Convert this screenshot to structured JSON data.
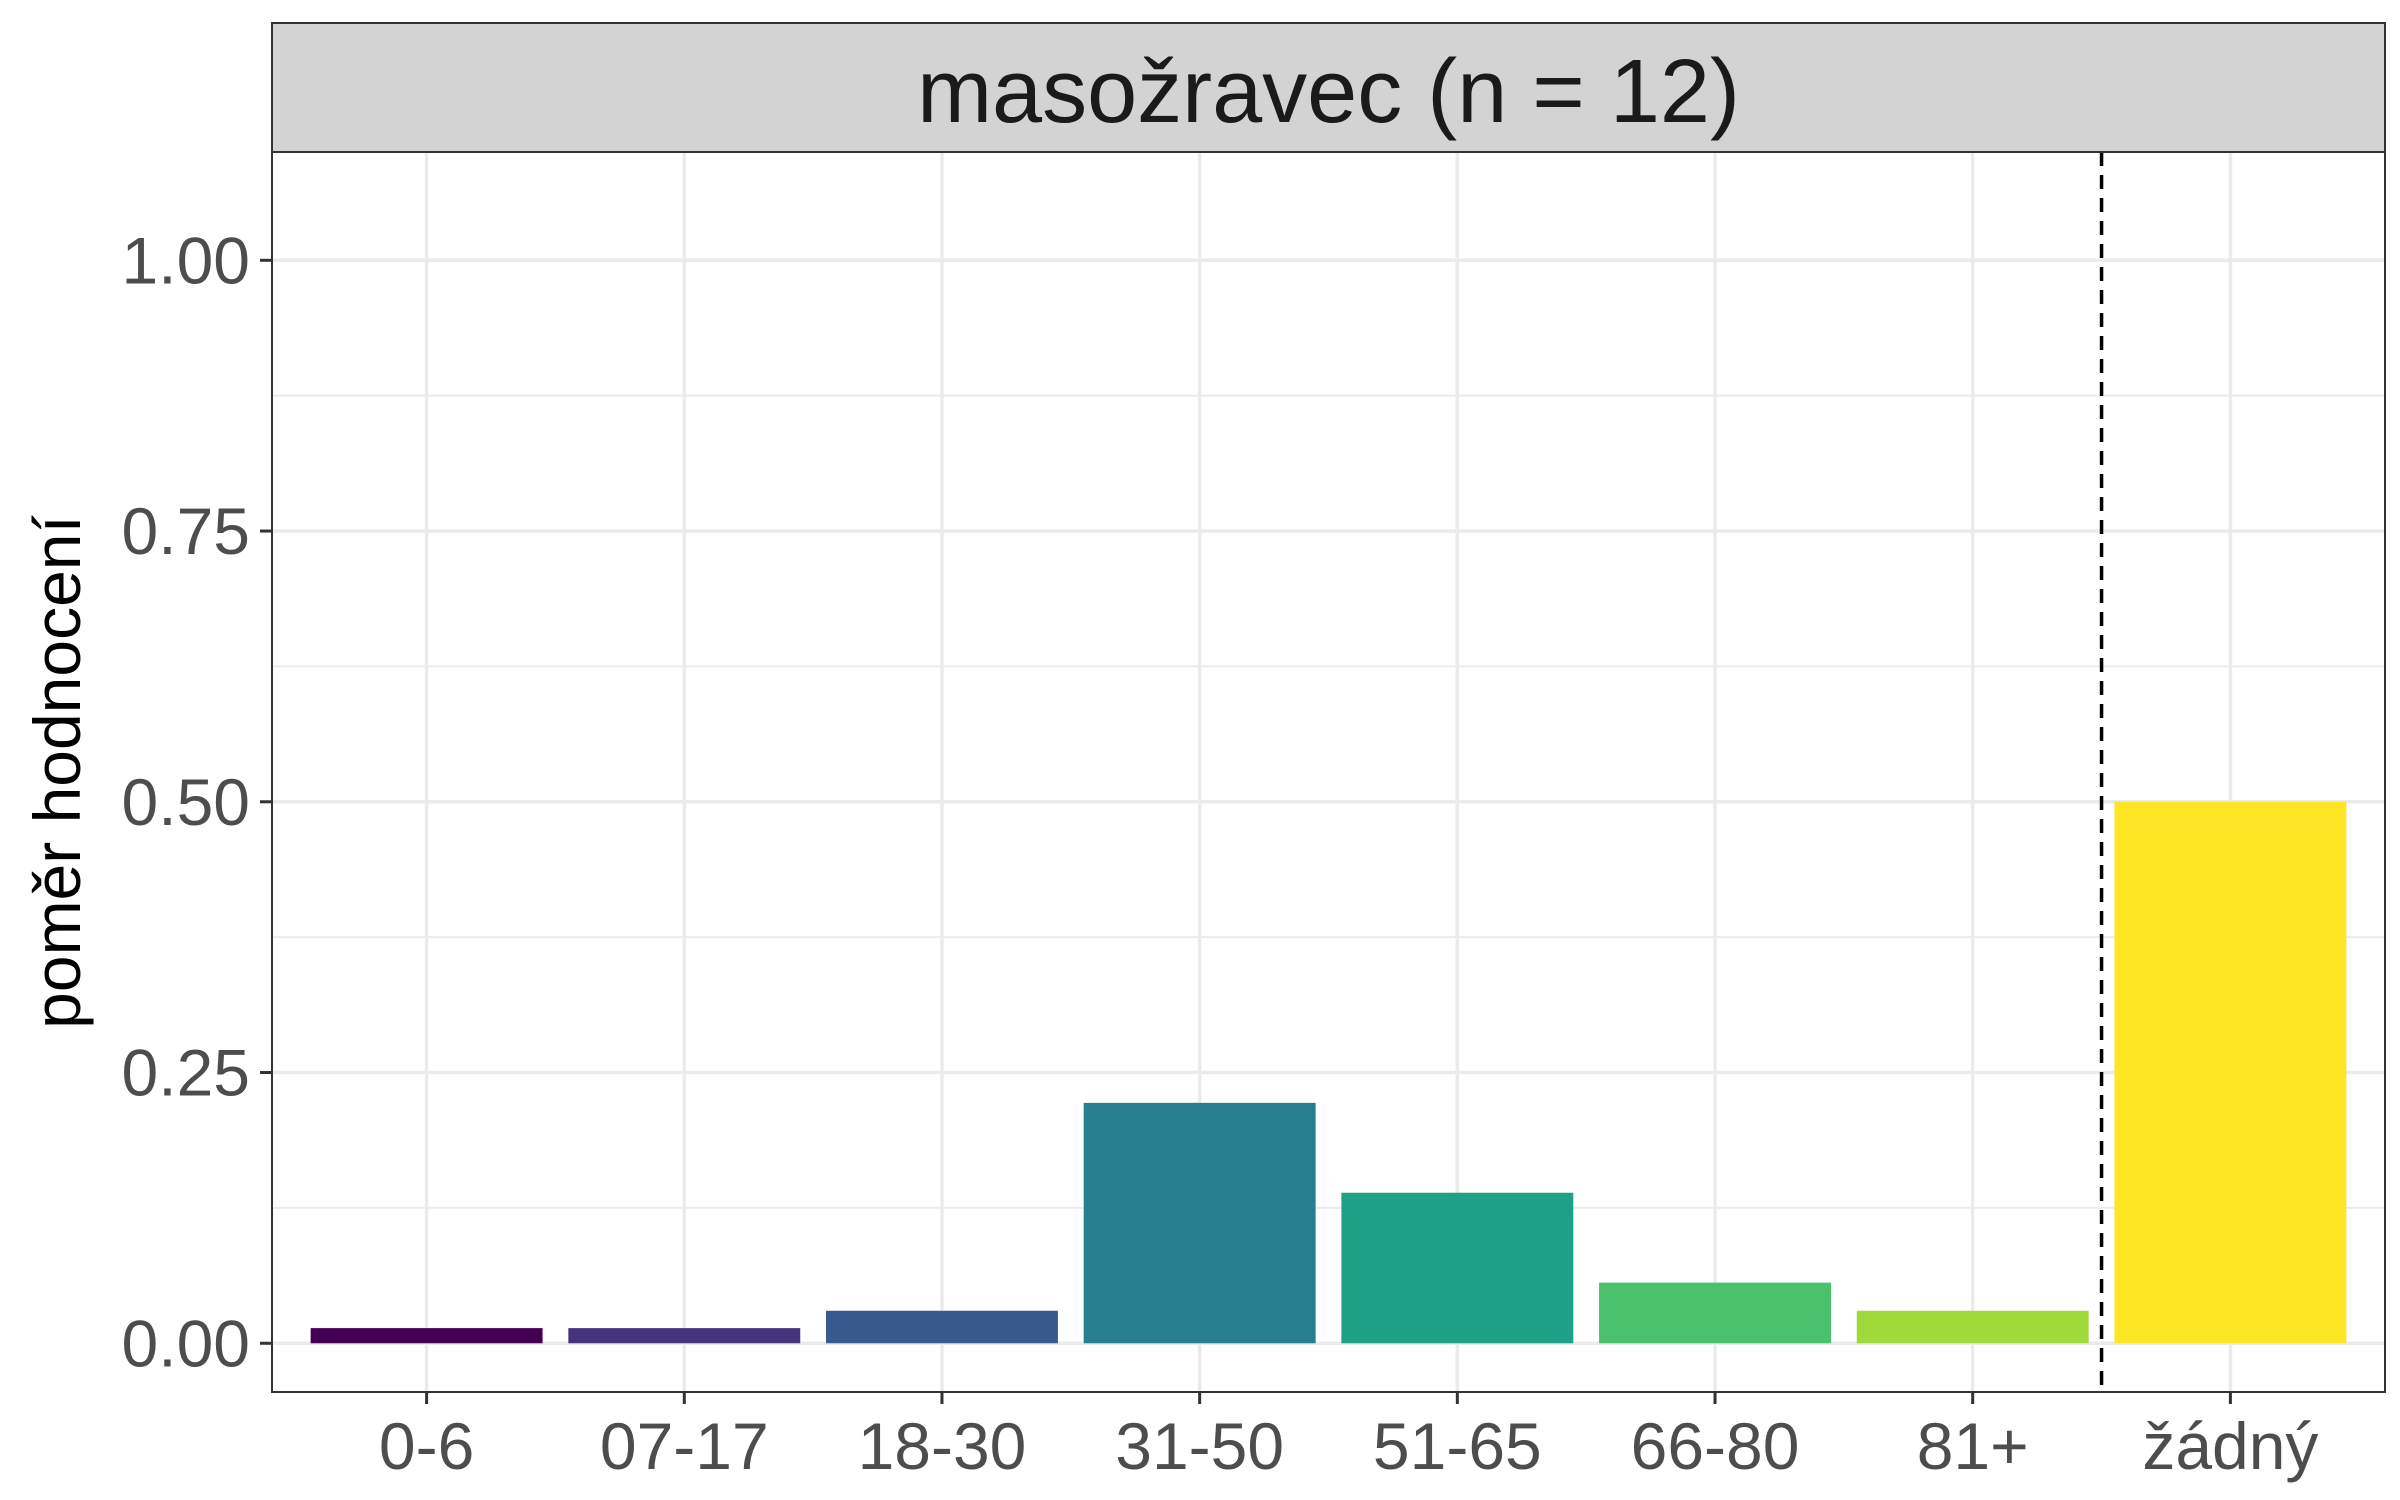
{
  "chart_data": {
    "type": "bar",
    "facet_title": "masožravec (n = 12)",
    "categories": [
      "0-6",
      "07-17",
      "18-30",
      "31-50",
      "51-65",
      "66-80",
      "81+",
      "žádný"
    ],
    "values": [
      0.014,
      0.014,
      0.03,
      0.222,
      0.139,
      0.056,
      0.03,
      0.5
    ],
    "colors": [
      "#440154",
      "#46337E",
      "#365C8D",
      "#277F8E",
      "#1FA187",
      "#4AC16D",
      "#9FDA3A",
      "#FDE725"
    ],
    "xlabel": "",
    "ylabel": "poměr hodnocení",
    "ylim": [
      -0.045,
      1.1
    ],
    "yticks": [
      0.0,
      0.25,
      0.5,
      0.75,
      1.0
    ],
    "ytick_labels": [
      "0.00",
      "0.25",
      "0.50",
      "0.75",
      "1.00"
    ],
    "reference_line": {
      "style": "dashed",
      "between": [
        "81+",
        "žádný"
      ]
    },
    "grid": true,
    "strip_background": "#d3d3d3"
  }
}
